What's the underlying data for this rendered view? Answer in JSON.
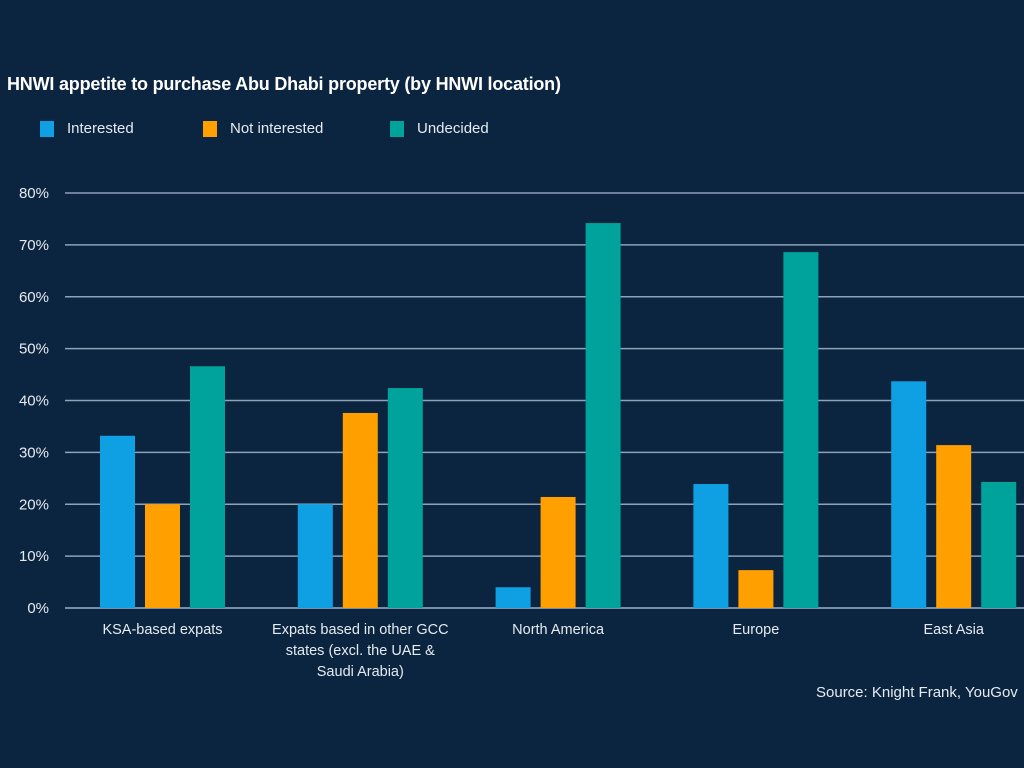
{
  "chart_data": {
    "type": "bar",
    "title": "HNWI appetite to purchase Abu Dhabi property (by HNWI location)",
    "categories": [
      "KSA-based expats",
      "Expats based in other GCC states (excl. the UAE & Saudi Arabia)",
      "North America",
      "Europe",
      "East Asia"
    ],
    "category_lines": [
      [
        "KSA-based expats"
      ],
      [
        "Expats based in other GCC",
        "states (excl. the UAE &",
        "Saudi Arabia)"
      ],
      [
        "North America"
      ],
      [
        "Europe"
      ],
      [
        "East Asia"
      ]
    ],
    "series": [
      {
        "name": "Interested",
        "color": "#0fa0e3",
        "values": [
          33.2,
          20.0,
          4.0,
          23.9,
          43.7
        ]
      },
      {
        "name": "Not interested",
        "color": "#ffa000",
        "values": [
          20.0,
          37.6,
          21.4,
          7.3,
          31.4
        ]
      },
      {
        "name": "Undecided",
        "color": "#00a39c",
        "values": [
          46.6,
          42.4,
          74.2,
          68.6,
          24.3
        ]
      }
    ],
    "ylim": [
      0,
      80
    ],
    "yticks": [
      "0%",
      "10%",
      "20%",
      "30%",
      "40%",
      "50%",
      "60%",
      "70%",
      "80%"
    ],
    "grid": true,
    "legend": "top-left",
    "source": "Source: Knight Frank, YouGov"
  }
}
